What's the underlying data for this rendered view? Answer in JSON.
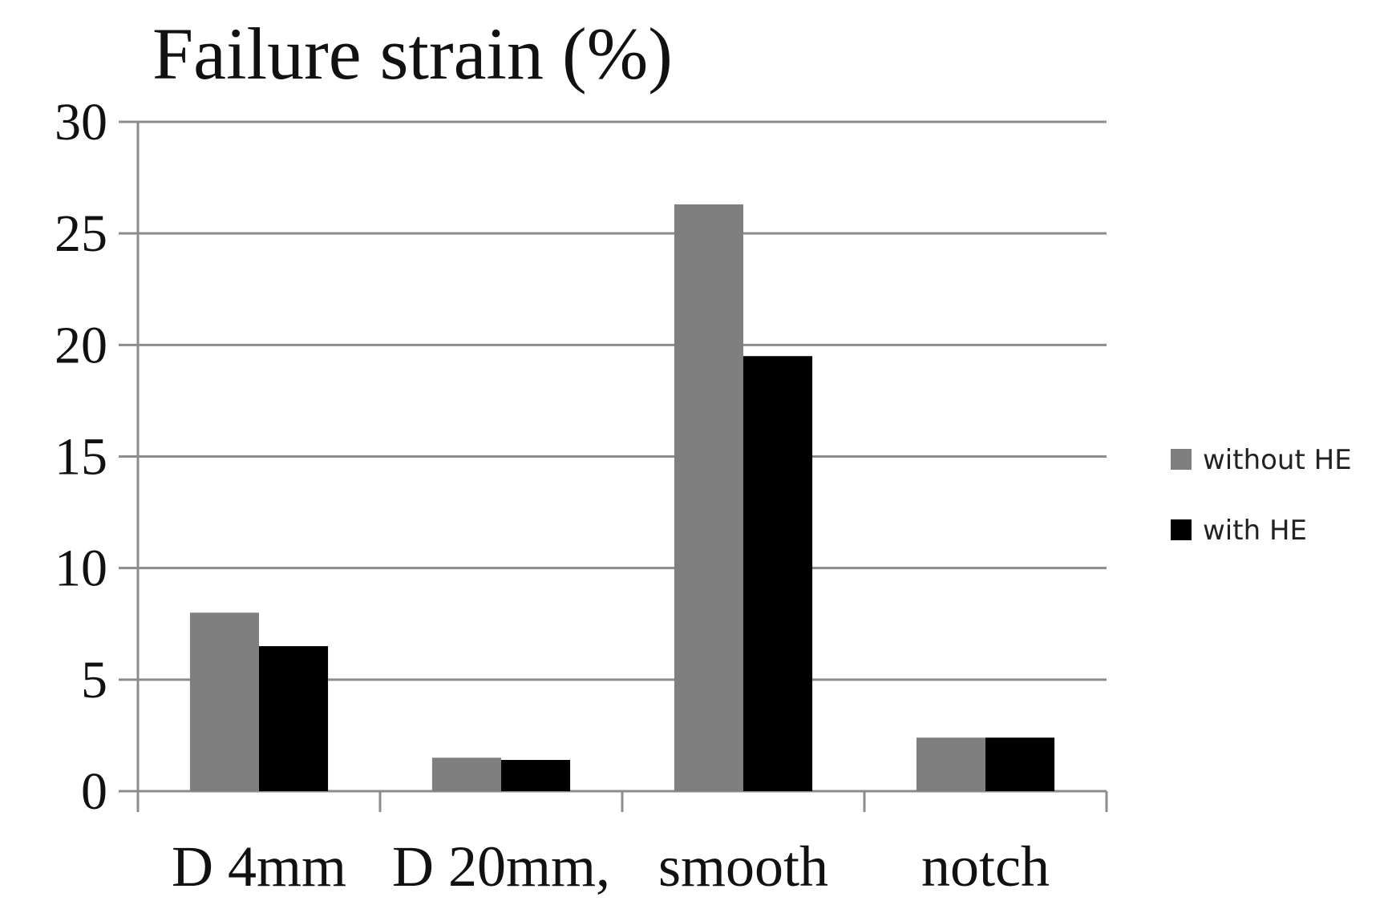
{
  "chart_data": {
    "type": "bar",
    "title": "Failure strain (%)",
    "xlabel": "",
    "ylabel": "",
    "categories": [
      "D 4mm",
      "D 20mm,",
      "smooth",
      "notch"
    ],
    "series": [
      {
        "name": "without HE",
        "values": [
          8.0,
          1.5,
          26.3,
          2.4
        ],
        "color": "#7f7f7f"
      },
      {
        "name": "with HE",
        "values": [
          6.5,
          1.4,
          19.5,
          2.4
        ],
        "color": "#000000"
      }
    ],
    "ylim": [
      0,
      30
    ],
    "yticks": [
      0,
      5,
      10,
      15,
      20,
      25,
      30
    ],
    "grid": true,
    "legend_position": "right"
  }
}
